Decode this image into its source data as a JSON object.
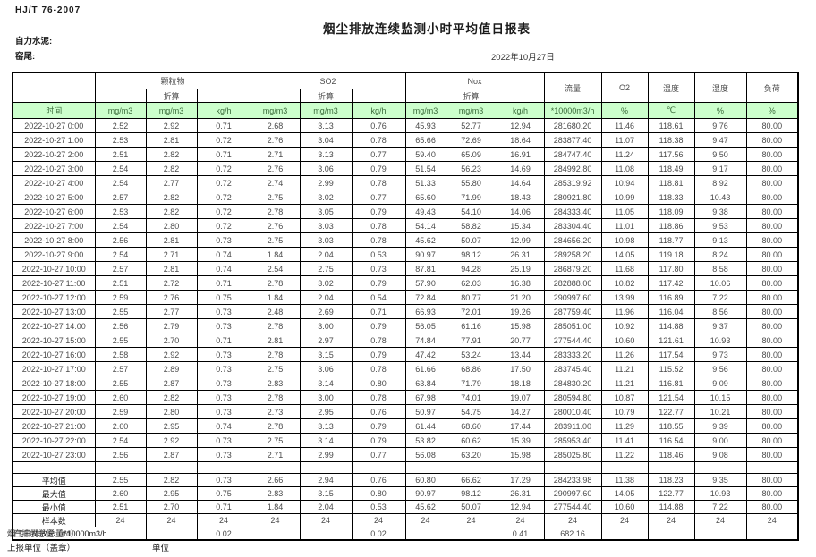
{
  "meta": {
    "standard_no": "HJ/T 76-2007",
    "title": "烟尘排放连续监测小时平均值日报表",
    "company": "自力水泥:",
    "location": "窑尾:",
    "date": "2022年10月27日"
  },
  "table": {
    "groups": [
      "颗粒物",
      "SO2",
      "Nox"
    ],
    "sub_label": "折算",
    "single_labels": [
      "流量",
      "O2",
      "温度",
      "湿度",
      "负荷"
    ],
    "units_row": [
      "时间",
      "mg/m3",
      "mg/m3",
      "kg/h",
      "mg/m3",
      "mg/m3",
      "kg/h",
      "mg/m3",
      "mg/m3",
      "kg/h",
      "*10000m3/h",
      "%",
      "℃",
      "%",
      "%"
    ],
    "rows": [
      [
        "2022-10-27 0:00",
        "2.52",
        "2.92",
        "0.71",
        "2.68",
        "3.13",
        "0.76",
        "45.93",
        "52.77",
        "12.94",
        "281680.20",
        "11.46",
        "118.61",
        "9.76",
        "80.00"
      ],
      [
        "2022-10-27 1:00",
        "2.53",
        "2.81",
        "0.72",
        "2.76",
        "3.04",
        "0.78",
        "65.66",
        "72.69",
        "18.64",
        "283877.40",
        "11.07",
        "118.38",
        "9.47",
        "80.00"
      ],
      [
        "2022-10-27 2:00",
        "2.51",
        "2.82",
        "0.71",
        "2.71",
        "3.13",
        "0.77",
        "59.40",
        "65.09",
        "16.91",
        "284747.40",
        "11.24",
        "117.56",
        "9.50",
        "80.00"
      ],
      [
        "2022-10-27 3:00",
        "2.54",
        "2.82",
        "0.72",
        "2.76",
        "3.06",
        "0.79",
        "51.54",
        "56.23",
        "14.69",
        "284992.80",
        "11.08",
        "118.49",
        "9.17",
        "80.00"
      ],
      [
        "2022-10-27 4:00",
        "2.54",
        "2.77",
        "0.72",
        "2.74",
        "2.99",
        "0.78",
        "51.33",
        "55.80",
        "14.64",
        "285319.92",
        "10.94",
        "118.81",
        "8.92",
        "80.00"
      ],
      [
        "2022-10-27 5:00",
        "2.57",
        "2.82",
        "0.72",
        "2.75",
        "3.02",
        "0.77",
        "65.60",
        "71.99",
        "18.43",
        "280921.80",
        "10.99",
        "118.33",
        "10.43",
        "80.00"
      ],
      [
        "2022-10-27 6:00",
        "2.53",
        "2.82",
        "0.72",
        "2.78",
        "3.05",
        "0.79",
        "49.43",
        "54.10",
        "14.06",
        "284333.40",
        "11.05",
        "118.09",
        "9.38",
        "80.00"
      ],
      [
        "2022-10-27 7:00",
        "2.54",
        "2.80",
        "0.72",
        "2.76",
        "3.03",
        "0.78",
        "54.14",
        "58.82",
        "15.34",
        "283304.40",
        "11.01",
        "118.86",
        "9.53",
        "80.00"
      ],
      [
        "2022-10-27 8:00",
        "2.56",
        "2.81",
        "0.73",
        "2.75",
        "3.03",
        "0.78",
        "45.62",
        "50.07",
        "12.99",
        "284656.20",
        "10.98",
        "118.77",
        "9.13",
        "80.00"
      ],
      [
        "2022-10-27 9:00",
        "2.54",
        "2.71",
        "0.74",
        "1.84",
        "2.04",
        "0.53",
        "90.97",
        "98.12",
        "26.31",
        "289258.20",
        "14.05",
        "119.18",
        "8.24",
        "80.00"
      ],
      [
        "2022-10-27 10:00",
        "2.57",
        "2.81",
        "0.74",
        "2.54",
        "2.75",
        "0.73",
        "87.81",
        "94.28",
        "25.19",
        "286879.20",
        "11.68",
        "117.80",
        "8.58",
        "80.00"
      ],
      [
        "2022-10-27 11:00",
        "2.51",
        "2.72",
        "0.71",
        "2.78",
        "3.02",
        "0.79",
        "57.90",
        "62.03",
        "16.38",
        "282888.00",
        "10.82",
        "117.42",
        "10.06",
        "80.00"
      ],
      [
        "2022-10-27 12:00",
        "2.59",
        "2.76",
        "0.75",
        "1.84",
        "2.04",
        "0.54",
        "72.84",
        "80.77",
        "21.20",
        "290997.60",
        "13.99",
        "116.89",
        "7.22",
        "80.00"
      ],
      [
        "2022-10-27 13:00",
        "2.55",
        "2.77",
        "0.73",
        "2.48",
        "2.69",
        "0.71",
        "66.93",
        "72.01",
        "19.26",
        "287759.40",
        "11.96",
        "116.04",
        "8.56",
        "80.00"
      ],
      [
        "2022-10-27 14:00",
        "2.56",
        "2.79",
        "0.73",
        "2.78",
        "3.00",
        "0.79",
        "56.05",
        "61.16",
        "15.98",
        "285051.00",
        "10.92",
        "114.88",
        "9.37",
        "80.00"
      ],
      [
        "2022-10-27 15:00",
        "2.55",
        "2.70",
        "0.71",
        "2.81",
        "2.97",
        "0.78",
        "74.84",
        "77.91",
        "20.77",
        "277544.40",
        "10.60",
        "121.61",
        "10.93",
        "80.00"
      ],
      [
        "2022-10-27 16:00",
        "2.58",
        "2.92",
        "0.73",
        "2.78",
        "3.15",
        "0.79",
        "47.42",
        "53.24",
        "13.44",
        "283333.20",
        "11.26",
        "117.54",
        "9.73",
        "80.00"
      ],
      [
        "2022-10-27 17:00",
        "2.57",
        "2.89",
        "0.73",
        "2.75",
        "3.06",
        "0.78",
        "61.66",
        "68.86",
        "17.50",
        "283745.40",
        "11.21",
        "115.52",
        "9.56",
        "80.00"
      ],
      [
        "2022-10-27 18:00",
        "2.55",
        "2.87",
        "0.73",
        "2.83",
        "3.14",
        "0.80",
        "63.84",
        "71.79",
        "18.18",
        "284830.20",
        "11.21",
        "116.81",
        "9.09",
        "80.00"
      ],
      [
        "2022-10-27 19:00",
        "2.60",
        "2.82",
        "0.73",
        "2.78",
        "3.00",
        "0.78",
        "67.98",
        "74.01",
        "19.07",
        "280594.80",
        "10.87",
        "121.54",
        "10.15",
        "80.00"
      ],
      [
        "2022-10-27 20:00",
        "2.59",
        "2.80",
        "0.73",
        "2.73",
        "2.95",
        "0.76",
        "50.97",
        "54.75",
        "14.27",
        "280010.40",
        "10.79",
        "122.77",
        "10.21",
        "80.00"
      ],
      [
        "2022-10-27 21:00",
        "2.60",
        "2.95",
        "0.74",
        "2.78",
        "3.13",
        "0.79",
        "61.44",
        "68.60",
        "17.44",
        "283911.00",
        "11.29",
        "118.55",
        "9.39",
        "80.00"
      ],
      [
        "2022-10-27 22:00",
        "2.54",
        "2.92",
        "0.73",
        "2.75",
        "3.14",
        "0.79",
        "53.82",
        "60.62",
        "15.39",
        "285953.40",
        "11.41",
        "116.54",
        "9.00",
        "80.00"
      ],
      [
        "2022-10-27 23:00",
        "2.56",
        "2.87",
        "0.73",
        "2.71",
        "2.99",
        "0.77",
        "56.08",
        "63.20",
        "15.98",
        "285025.80",
        "11.22",
        "118.46",
        "9.08",
        "80.00"
      ]
    ],
    "summary_rows": [
      {
        "label": "平均值",
        "values": [
          "2.55",
          "2.82",
          "0.73",
          "2.66",
          "2.94",
          "0.76",
          "60.80",
          "66.62",
          "17.29",
          "284233.98",
          "11.38",
          "118.23",
          "9.35",
          "80.00"
        ]
      },
      {
        "label": "最大值",
        "values": [
          "2.60",
          "2.95",
          "0.75",
          "2.83",
          "3.15",
          "0.80",
          "90.97",
          "98.12",
          "26.31",
          "290997.60",
          "14.05",
          "122.77",
          "10.93",
          "80.00"
        ]
      },
      {
        "label": "最小值",
        "values": [
          "2.51",
          "2.70",
          "0.71",
          "1.84",
          "2.04",
          "0.53",
          "45.62",
          "50.07",
          "12.94",
          "277544.40",
          "10.60",
          "114.88",
          "7.22",
          "80.00"
        ]
      },
      {
        "label": "样本数",
        "values": [
          "24",
          "24",
          "24",
          "24",
          "24",
          "24",
          "24",
          "24",
          "24",
          "24",
          "24",
          "24",
          "24",
          "24"
        ]
      }
    ],
    "daily_total_row": {
      "label": "日排放总量（t/d）",
      "values": [
        "",
        "0.02",
        "",
        "",
        "0.02",
        "",
        "",
        "0.41",
        "682.16",
        "",
        "",
        "",
        ""
      ]
    }
  },
  "footer": {
    "flue_total": "烟气日排放总量*10000m3/h",
    "report_unit": "上报单位（盖章）",
    "unit": "单位"
  }
}
